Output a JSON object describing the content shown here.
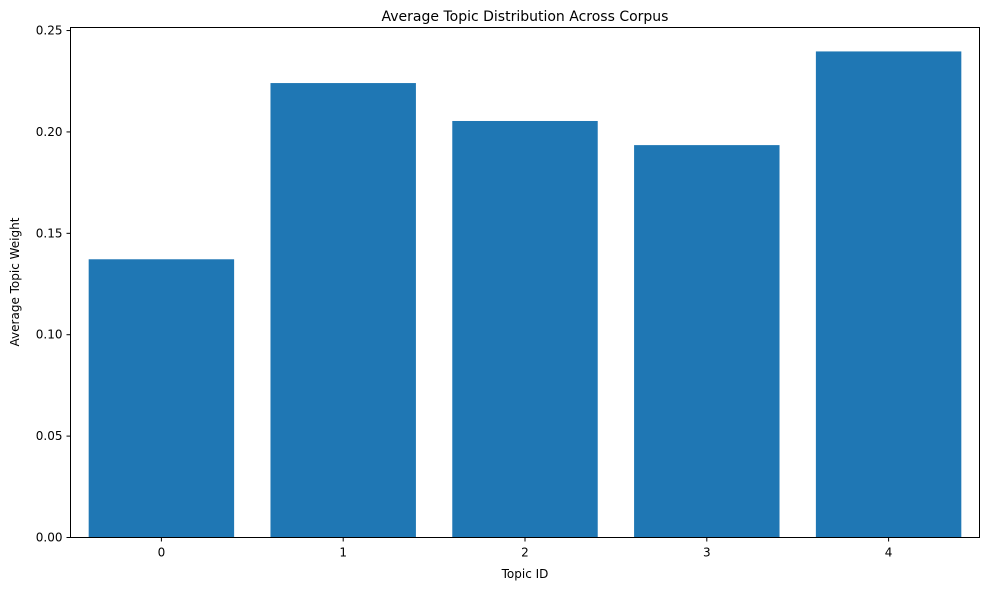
{
  "chart_data": {
    "type": "bar",
    "title": "Average Topic Distribution Across Corpus",
    "xlabel": "Topic ID",
    "ylabel": "Average Topic Weight",
    "categories": [
      "0",
      "1",
      "2",
      "3",
      "4"
    ],
    "values": [
      0.1372,
      0.2241,
      0.2054,
      0.1935,
      0.2397
    ],
    "ylim": [
      0,
      0.2515
    ],
    "yticks": [
      0.0,
      0.05,
      0.1,
      0.15,
      0.2,
      0.25
    ],
    "ytick_labels": [
      "0.00",
      "0.05",
      "0.10",
      "0.15",
      "0.20",
      "0.25"
    ],
    "bar_color": "#1f77b4",
    "grid": false,
    "legend": "none"
  }
}
